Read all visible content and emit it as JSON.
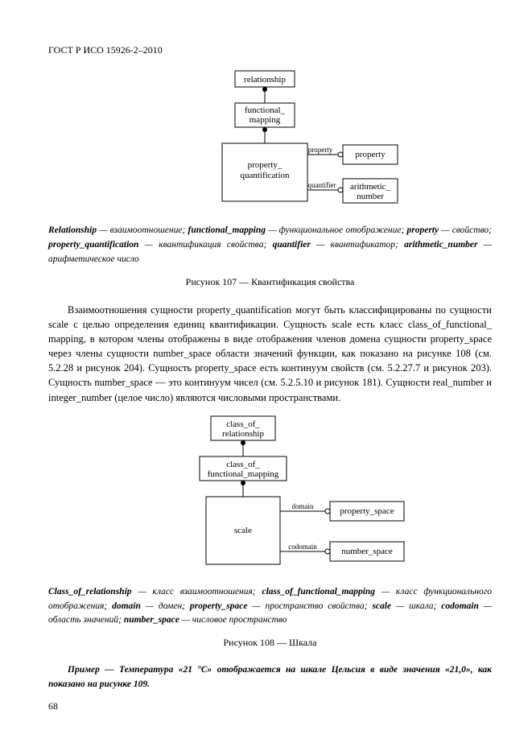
{
  "header": "ГОСТ Р ИСО 15926-2–2010",
  "diagram107": {
    "nodes": {
      "relationship": "relationship",
      "functional_mapping": [
        "functional_",
        "mapping"
      ],
      "property_quantification": [
        "property_",
        "quantification"
      ],
      "property": "property",
      "arithmetic_number": [
        "arithmetic_",
        "number"
      ]
    },
    "edges": {
      "prop": "property",
      "quant": "quantifier"
    }
  },
  "gloss107": {
    "parts": [
      {
        "b": true,
        "t": "Relationship"
      },
      {
        "b": false,
        "t": " — взаимоотношение; "
      },
      {
        "b": true,
        "t": "functional_mapping"
      },
      {
        "b": false,
        "t": " — функциональное отображение; "
      },
      {
        "b": true,
        "t": "property"
      },
      {
        "b": false,
        "t": " — свойство; "
      },
      {
        "b": true,
        "t": "property_quantification"
      },
      {
        "b": false,
        "t": " — квантификация свойства; "
      },
      {
        "b": true,
        "t": "quantifier"
      },
      {
        "b": false,
        "t": " — квантификатор; "
      },
      {
        "b": true,
        "t": "arithmetic_number"
      },
      {
        "b": false,
        "t": " — арифметическое число"
      }
    ]
  },
  "caption107": "Рисунок 107 — Квантификация свойства",
  "para1": "Взаимоотношения сущности property_quantification могут быть классифицированы по сущности scale с целью определения единиц квантификации. Сущность scale есть класс class_of_functional_ mapping, в котором члены отображены в виде отображения членов домена сущности property_space через члены сущности number_space области значений функции, как показано на рисунке 108 (см. 5.2.28 и рисунок 204). Сущность property_space есть континуум свойств (см. 5.2.27.7 и рисунок 203). Сущность number_space — это континуум чисел (см. 5.2.5.10 и рисунок 181). Сущности real_number и integer_number (целое число) являются числовыми пространствами.",
  "diagram108": {
    "nodes": {
      "class_of_relationship": [
        "class_of_",
        "relationship"
      ],
      "class_of_functional_mapping": [
        "class_of_",
        "functional_mapping"
      ],
      "scale": "scale",
      "property_space": "property_space",
      "number_space": "number_space"
    },
    "edges": {
      "domain": "domain",
      "codomain": "codomain"
    }
  },
  "gloss108": {
    "parts": [
      {
        "b": true,
        "t": "Class_of_relationship"
      },
      {
        "b": false,
        "t": " — класс взаимоотношения; "
      },
      {
        "b": true,
        "t": "class_of_functional_mapping"
      },
      {
        "b": false,
        "t": " — класс функционального отображения; "
      },
      {
        "b": true,
        "t": "domain"
      },
      {
        "b": false,
        "t": " — домен; "
      },
      {
        "b": true,
        "t": "property_space"
      },
      {
        "b": false,
        "t": " — пространство свойства; "
      },
      {
        "b": true,
        "t": "scale"
      },
      {
        "b": false,
        "t": " — шкала; "
      },
      {
        "b": true,
        "t": "codomain"
      },
      {
        "b": false,
        "t": " — область значений; "
      },
      {
        "b": true,
        "t": "number_space"
      },
      {
        "b": false,
        "t": " — числовое пространство"
      }
    ]
  },
  "caption108": "Рисунок 108 — Шкала",
  "example": "Пример — Температура «21 °С» отображается на шкале Цельсия в виде значения «21,0», как показано на рисунке 109.",
  "pagenum": "68"
}
